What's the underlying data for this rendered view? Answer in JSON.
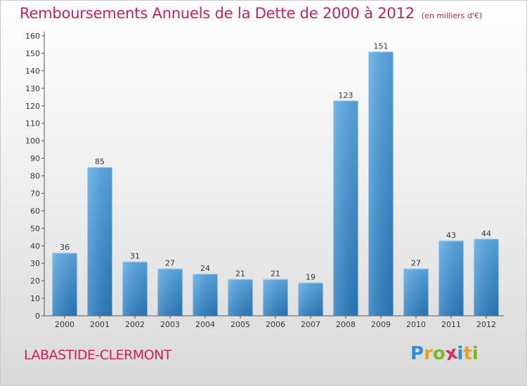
{
  "header": {
    "title": "Remboursements Annuels de la Dette de 2000 à 2012",
    "unit": "(en milliers d'€)"
  },
  "footer": {
    "commune": "LABASTIDE-CLERMONT",
    "logo": {
      "letters": [
        "P",
        "r",
        "o",
        "x",
        "i",
        "t",
        "i"
      ],
      "colors": [
        "#2e8fd8",
        "#e8a020",
        "#7cb829",
        "#d62e6a",
        "#2e8fd8",
        "#e8a020",
        "#7cb829"
      ]
    }
  },
  "chart_data": {
    "type": "bar",
    "categories": [
      "2000",
      "2001",
      "2002",
      "2003",
      "2004",
      "2005",
      "2006",
      "2007",
      "2008",
      "2009",
      "2010",
      "2011",
      "2012"
    ],
    "values": [
      36,
      85,
      31,
      27,
      24,
      21,
      21,
      19,
      123,
      151,
      27,
      43,
      44
    ],
    "ylim": [
      0,
      160
    ],
    "yticks": [
      0,
      10,
      20,
      30,
      40,
      50,
      60,
      70,
      80,
      90,
      100,
      110,
      120,
      130,
      140,
      150,
      160
    ],
    "grid": false,
    "bar_color_top": "#5aaae6",
    "bar_color_bottom": "#2a7cc0"
  }
}
